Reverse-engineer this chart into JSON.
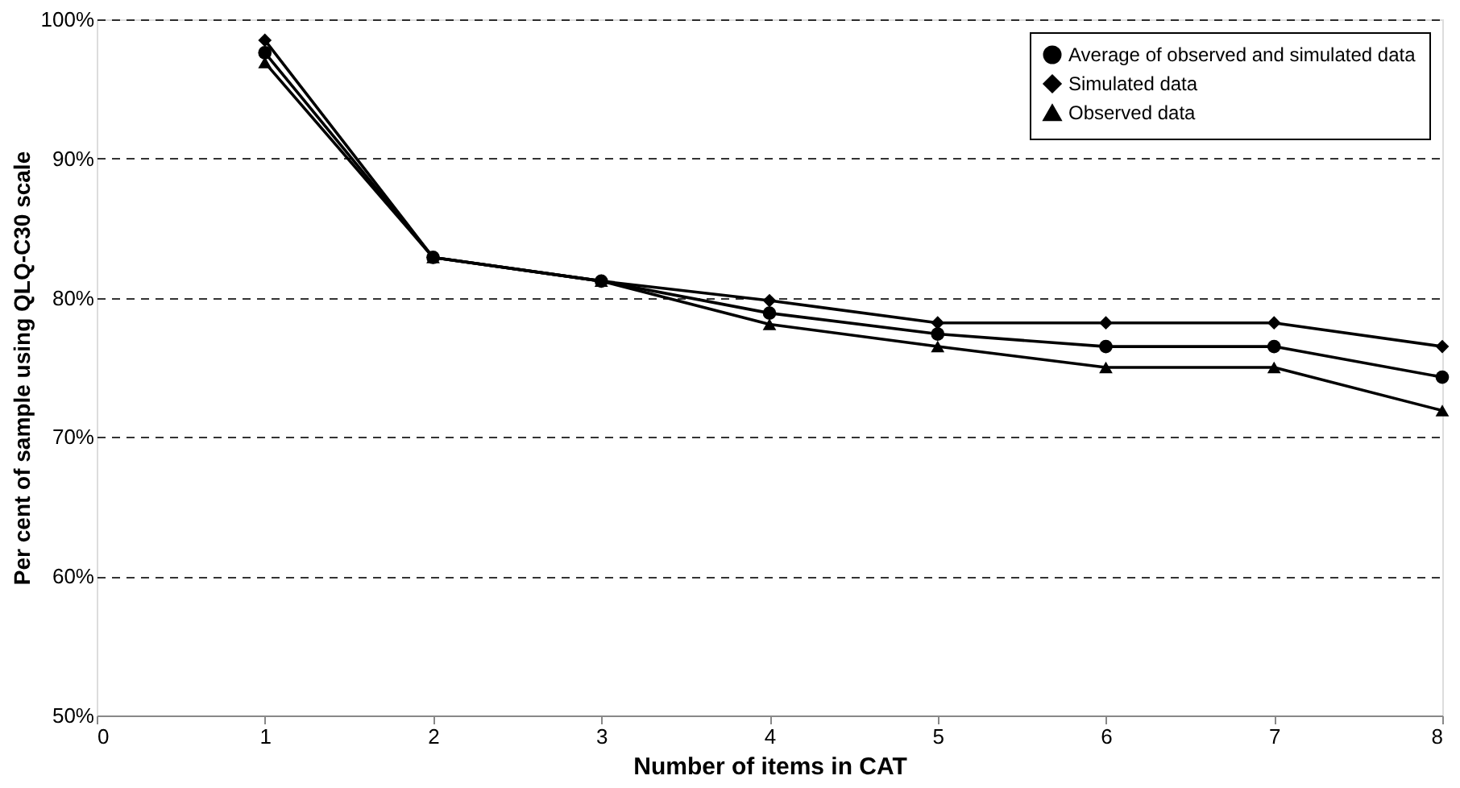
{
  "chart_data": {
    "type": "line",
    "xlabel": "Number of items in CAT",
    "ylabel": "Per cent of sample using QLQ-C30 scale",
    "x": [
      1,
      2,
      3,
      4,
      5,
      6,
      7,
      8
    ],
    "series": [
      {
        "name": "Average of observed and simulated data",
        "color": "#000000",
        "marker": "circle",
        "values": [
          97.6,
          82.9,
          81.2,
          78.9,
          77.4,
          76.5,
          76.5,
          74.3
        ]
      },
      {
        "name": "Simulated data",
        "color": "#000000",
        "marker": "diamond",
        "values": [
          98.5,
          82.9,
          81.2,
          79.8,
          78.2,
          78.2,
          78.2,
          76.5
        ]
      },
      {
        "name": "Observed data",
        "color": "#000000",
        "marker": "triangle",
        "values": [
          96.9,
          82.9,
          81.2,
          78.1,
          76.5,
          75.0,
          75.0,
          71.9
        ]
      }
    ],
    "xlim": [
      0,
      8
    ],
    "xticks": [
      0,
      1,
      2,
      3,
      4,
      5,
      6,
      7,
      8
    ],
    "ylim": [
      50,
      100
    ],
    "yticks": [
      {
        "value": 50,
        "label": "50%"
      },
      {
        "value": 60,
        "label": "60%"
      },
      {
        "value": 70,
        "label": "70%"
      },
      {
        "value": 80,
        "label": "80%"
      },
      {
        "value": 90,
        "label": "90%"
      },
      {
        "value": 100,
        "label": "100%"
      }
    ],
    "grid": "y",
    "legend": "top right",
    "line_style": "solid"
  }
}
